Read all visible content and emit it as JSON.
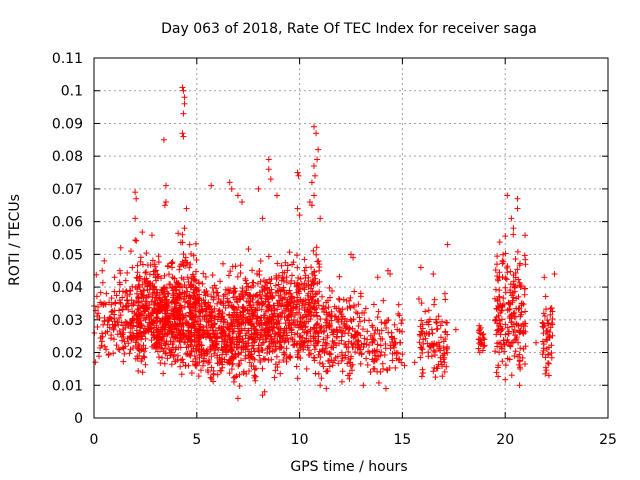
{
  "chart_data": {
    "type": "scatter",
    "title": "Day 063 of 2018, Rate Of TEC Index for receiver saga",
    "xlabel": "GPS time / hours",
    "ylabel": "ROTI / TECUs",
    "xlim": [
      0,
      25
    ],
    "ylim": [
      0,
      0.11
    ],
    "xticks": [
      0,
      5,
      10,
      15,
      20,
      25
    ],
    "xtick_labels": [
      "0",
      "5",
      "10",
      "15",
      "20",
      "25"
    ],
    "yticks": [
      0,
      0.01,
      0.02,
      0.03,
      0.04,
      0.05,
      0.06,
      0.07,
      0.08,
      0.09,
      0.1,
      0.11
    ],
    "ytick_labels": [
      "0",
      "0.01",
      "0.02",
      "0.03",
      "0.04",
      "0.05",
      "0.06",
      "0.07",
      "0.08",
      "0.09",
      "0.1",
      "0.11"
    ],
    "grid": true,
    "marker": "+",
    "color": "#ff0000",
    "clusters": [
      {
        "x": [
          0.0,
          1.2
        ],
        "y": [
          0.015,
          0.048
        ],
        "n": 70
      },
      {
        "x": [
          1.2,
          2.0
        ],
        "y": [
          0.014,
          0.055
        ],
        "n": 90
      },
      {
        "x": [
          2.0,
          3.0
        ],
        "y": [
          0.012,
          0.06
        ],
        "n": 220
      },
      {
        "x": [
          3.0,
          4.0
        ],
        "y": [
          0.012,
          0.055
        ],
        "n": 260
      },
      {
        "x": [
          4.0,
          5.0
        ],
        "y": [
          0.011,
          0.06
        ],
        "n": 260
      },
      {
        "x": [
          5.0,
          6.5
        ],
        "y": [
          0.01,
          0.05
        ],
        "n": 300
      },
      {
        "x": [
          6.5,
          8.0
        ],
        "y": [
          0.008,
          0.055
        ],
        "n": 320
      },
      {
        "x": [
          8.0,
          9.5
        ],
        "y": [
          0.012,
          0.055
        ],
        "n": 300
      },
      {
        "x": [
          9.5,
          11.0
        ],
        "y": [
          0.012,
          0.06
        ],
        "n": 260
      },
      {
        "x": [
          11.0,
          13.0
        ],
        "y": [
          0.01,
          0.048
        ],
        "n": 200
      },
      {
        "x": [
          13.0,
          15.0
        ],
        "y": [
          0.01,
          0.04
        ],
        "n": 110
      },
      {
        "x": [
          15.8,
          17.2
        ],
        "y": [
          0.01,
          0.042
        ],
        "n": 100
      },
      {
        "x": [
          18.7,
          19.0
        ],
        "y": [
          0.018,
          0.032
        ],
        "n": 25
      },
      {
        "x": [
          19.5,
          21.0
        ],
        "y": [
          0.01,
          0.06
        ],
        "n": 210
      },
      {
        "x": [
          21.8,
          22.3
        ],
        "y": [
          0.01,
          0.043
        ],
        "n": 50
      }
    ],
    "points": [
      [
        4.3,
        0.101
      ],
      [
        4.35,
        0.1
      ],
      [
        4.4,
        0.098
      ],
      [
        4.4,
        0.096
      ],
      [
        4.35,
        0.093
      ],
      [
        4.3,
        0.087
      ],
      [
        4.35,
        0.086
      ],
      [
        3.4,
        0.085
      ],
      [
        3.5,
        0.071
      ],
      [
        3.5,
        0.066
      ],
      [
        3.45,
        0.065
      ],
      [
        2.0,
        0.069
      ],
      [
        2.05,
        0.067
      ],
      [
        2.0,
        0.061
      ],
      [
        4.5,
        0.064
      ],
      [
        4.4,
        0.058
      ],
      [
        4.3,
        0.056
      ],
      [
        5.7,
        0.071
      ],
      [
        6.6,
        0.072
      ],
      [
        6.7,
        0.07
      ],
      [
        7.0,
        0.068
      ],
      [
        7.2,
        0.066
      ],
      [
        8.0,
        0.07
      ],
      [
        8.2,
        0.061
      ],
      [
        8.5,
        0.079
      ],
      [
        8.5,
        0.076
      ],
      [
        8.6,
        0.073
      ],
      [
        8.9,
        0.068
      ],
      [
        9.9,
        0.075
      ],
      [
        9.95,
        0.074
      ],
      [
        9.9,
        0.064
      ],
      [
        10.0,
        0.062
      ],
      [
        10.7,
        0.089
      ],
      [
        10.8,
        0.087
      ],
      [
        10.9,
        0.082
      ],
      [
        10.85,
        0.079
      ],
      [
        10.7,
        0.077
      ],
      [
        10.75,
        0.074
      ],
      [
        10.6,
        0.072
      ],
      [
        10.7,
        0.068
      ],
      [
        10.5,
        0.066
      ],
      [
        10.6,
        0.065
      ],
      [
        11.0,
        0.061
      ],
      [
        17.2,
        0.053
      ],
      [
        20.1,
        0.068
      ],
      [
        20.6,
        0.067
      ],
      [
        20.6,
        0.064
      ],
      [
        20.3,
        0.061
      ],
      [
        20.4,
        0.058
      ],
      [
        19.6,
        0.047
      ],
      [
        22.4,
        0.044
      ],
      [
        21.9,
        0.043
      ],
      [
        14.3,
        0.045
      ],
      [
        14.4,
        0.044
      ],
      [
        13.8,
        0.043
      ],
      [
        12.5,
        0.05
      ],
      [
        12.6,
        0.049
      ],
      [
        15.9,
        0.046
      ],
      [
        16.5,
        0.044
      ],
      [
        0.2,
        0.032
      ],
      [
        0.6,
        0.038
      ],
      [
        0.4,
        0.045
      ],
      [
        0.5,
        0.048
      ],
      [
        1.3,
        0.052
      ],
      [
        1.8,
        0.051
      ],
      [
        1.0,
        0.043
      ],
      [
        7.0,
        0.006
      ],
      [
        8.2,
        0.007
      ],
      [
        8.3,
        0.008
      ],
      [
        11.3,
        0.009
      ],
      [
        11.0,
        0.01
      ],
      [
        15.6,
        0.017
      ],
      [
        15.1,
        0.016
      ],
      [
        17.6,
        0.027
      ],
      [
        14.2,
        0.009
      ],
      [
        13.1,
        0.01
      ],
      [
        20.7,
        0.01
      ],
      [
        21.5,
        0.023
      ]
    ]
  }
}
